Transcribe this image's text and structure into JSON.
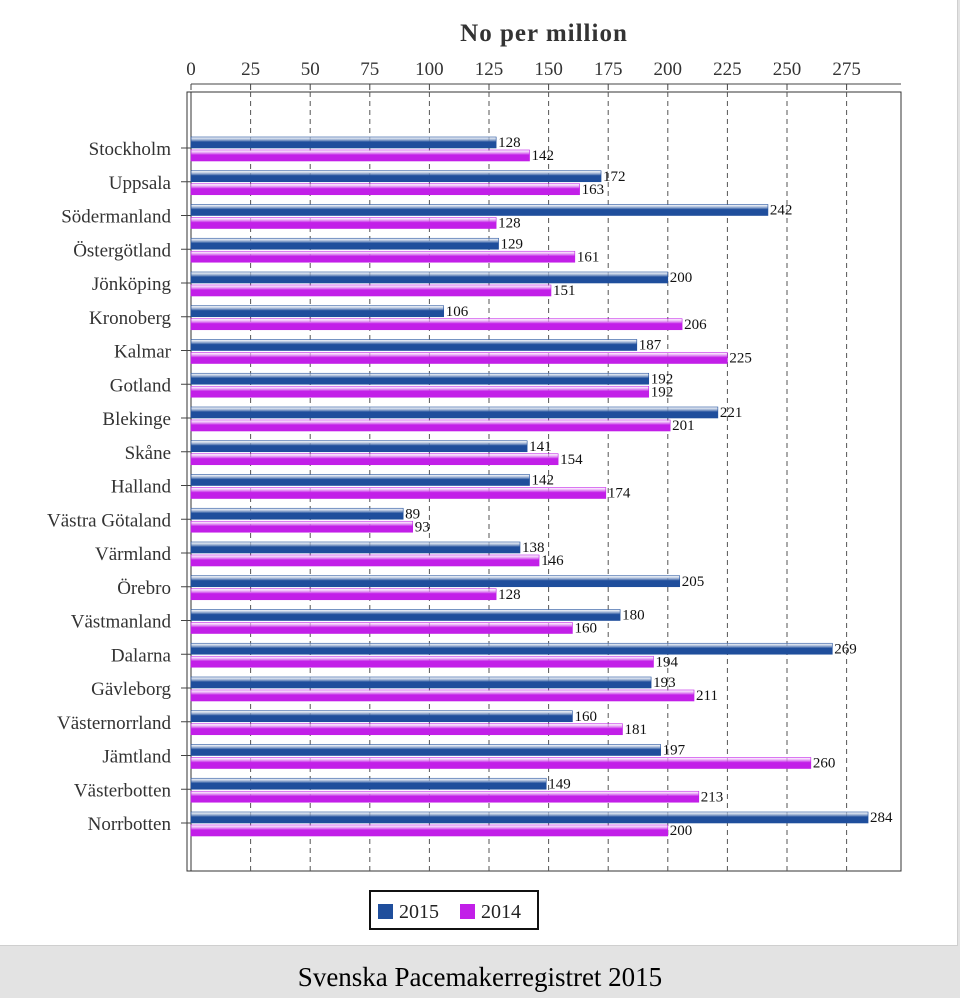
{
  "footer_text": "Svenska Pacemakerregistret 2015",
  "chart_data": {
    "type": "bar",
    "orientation": "horizontal",
    "title": "No per million",
    "xlim": [
      0,
      300
    ],
    "xticks": [
      0,
      25,
      50,
      75,
      100,
      125,
      150,
      175,
      200,
      225,
      250,
      275
    ],
    "grid": true,
    "legend_position": "bottom-center",
    "categories": [
      "Stockholm",
      "Uppsala",
      "Södermanland",
      "Östergötland",
      "Jönköping",
      "Kronoberg",
      "Kalmar",
      "Gotland",
      "Blekinge",
      "Skåne",
      "Halland",
      "Västra Götaland",
      "Värmland",
      "Örebro",
      "Västmanland",
      "Dalarna",
      "Gävleborg",
      "Västernorrland",
      "Jämtland",
      "Västerbotten",
      "Norrbotten"
    ],
    "series": [
      {
        "name": "2015",
        "color": "#1f4e9c",
        "values": [
          128,
          172,
          242,
          129,
          200,
          106,
          187,
          192,
          221,
          141,
          142,
          89,
          138,
          205,
          180,
          269,
          193,
          160,
          197,
          149,
          284
        ]
      },
      {
        "name": "2014",
        "color": "#c21fe8",
        "values": [
          142,
          163,
          128,
          161,
          151,
          206,
          225,
          192,
          201,
          154,
          174,
          93,
          146,
          128,
          160,
          194,
          211,
          181,
          260,
          213,
          200
        ]
      }
    ]
  }
}
